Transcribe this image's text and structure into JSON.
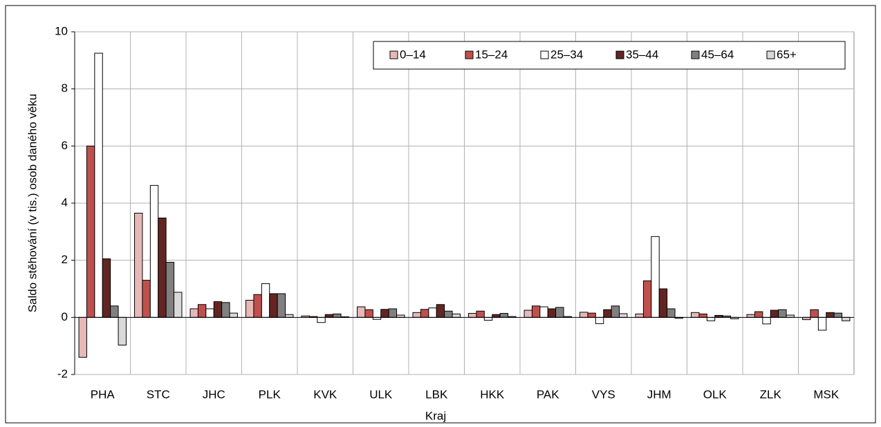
{
  "chart_data": {
    "type": "bar",
    "ylabel": "Saldo stěhování (v tis.) osob daného věku",
    "xlabel": "Kraj",
    "categories": [
      "PHA",
      "STC",
      "JHC",
      "PLK",
      "KVK",
      "ULK",
      "LBK",
      "HKK",
      "PAK",
      "VYS",
      "JHM",
      "OLK",
      "ZLK",
      "MSK"
    ],
    "series": [
      {
        "name": "0–14",
        "color": "#e6b8b7",
        "values": [
          -1.4,
          3.65,
          0.3,
          0.6,
          0.05,
          0.37,
          0.17,
          0.14,
          0.25,
          0.18,
          0.12,
          0.17,
          0.1,
          -0.08
        ]
      },
      {
        "name": "15–24",
        "color": "#c0504d",
        "values": [
          6.0,
          1.3,
          0.45,
          0.8,
          0.03,
          0.27,
          0.28,
          0.22,
          0.4,
          0.15,
          1.28,
          0.12,
          0.2,
          0.27
        ]
      },
      {
        "name": "25–34",
        "color": "#ffffff",
        "values": [
          9.25,
          4.62,
          0.3,
          1.18,
          -0.18,
          -0.07,
          0.33,
          -0.1,
          0.37,
          -0.22,
          2.83,
          -0.12,
          -0.23,
          -0.45
        ]
      },
      {
        "name": "35–44",
        "color": "#632523",
        "values": [
          2.05,
          3.48,
          0.55,
          0.83,
          0.1,
          0.28,
          0.45,
          0.1,
          0.3,
          0.27,
          1.0,
          0.07,
          0.25,
          0.17
        ]
      },
      {
        "name": "45–64",
        "color": "#808080",
        "values": [
          0.4,
          1.93,
          0.52,
          0.83,
          0.12,
          0.3,
          0.22,
          0.14,
          0.35,
          0.4,
          0.3,
          0.05,
          0.27,
          0.15
        ]
      },
      {
        "name": "65+",
        "color": "#d9d9d9",
        "values": [
          -0.97,
          0.88,
          0.15,
          0.1,
          0.02,
          0.08,
          0.12,
          0.03,
          0.03,
          0.13,
          -0.03,
          -0.05,
          0.08,
          -0.12
        ]
      }
    ],
    "ylim": [
      -2,
      10
    ],
    "yticks": [
      -2,
      0,
      2,
      4,
      6,
      8,
      10
    ],
    "grid": true,
    "legend": "upper right"
  }
}
